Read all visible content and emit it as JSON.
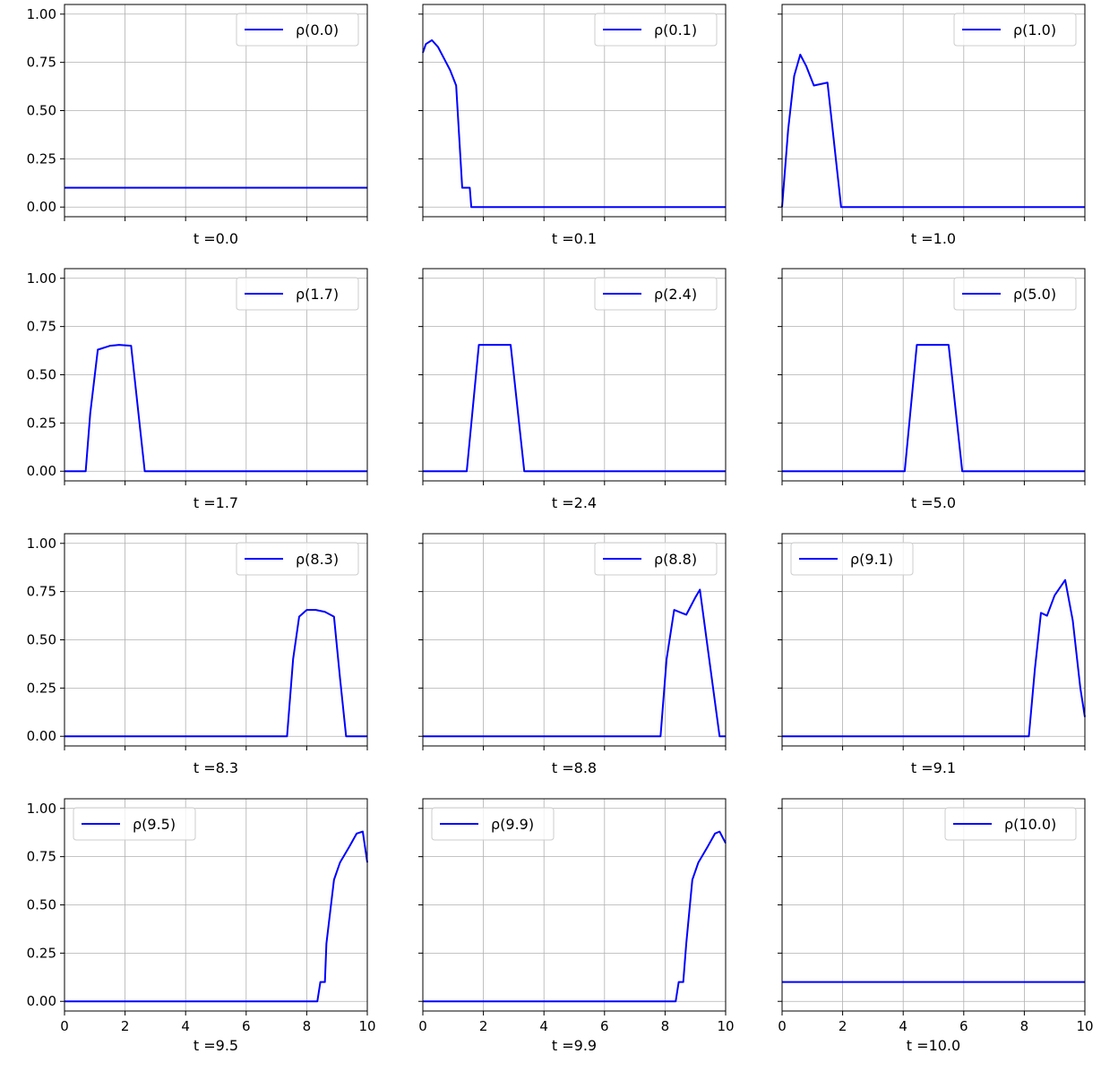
{
  "figure": {
    "layout": "4x3 grid",
    "shared_x": true,
    "shared_y": true
  },
  "colors": {
    "series": "#0000ff",
    "grid": "#b0b0b0",
    "axes": "#000000",
    "legend_border": "#cccccc"
  },
  "chart_data": [
    {
      "type": "line",
      "xlabel": "t =0.0",
      "legend": "ρ(0.0)",
      "legend_position": "upper-right",
      "xlim": [
        0,
        10
      ],
      "ylim": [
        -0.05,
        1.05
      ],
      "x": [
        0,
        10
      ],
      "y": [
        0.1,
        0.1
      ],
      "xticks": [
        0,
        2,
        4,
        6,
        8,
        10
      ],
      "yticks": [
        0.0,
        0.25,
        0.5,
        0.75,
        1.0
      ],
      "show_xticklabels": false,
      "show_yticklabels": true,
      "grid": true
    },
    {
      "type": "line",
      "xlabel": "t =0.1",
      "legend": "ρ(0.1)",
      "legend_position": "upper-right",
      "xlim": [
        0,
        10
      ],
      "ylim": [
        -0.05,
        1.05
      ],
      "x": [
        0,
        0.1,
        0.3,
        0.5,
        0.7,
        0.9,
        1.1,
        1.3,
        1.35,
        1.55,
        1.6,
        10
      ],
      "y": [
        0.8,
        0.845,
        0.865,
        0.83,
        0.77,
        0.71,
        0.63,
        0.1,
        0.1,
        0.1,
        0.0,
        0.0
      ],
      "xticks": [
        0,
        2,
        4,
        6,
        8,
        10
      ],
      "yticks": [
        0.0,
        0.25,
        0.5,
        0.75,
        1.0
      ],
      "show_xticklabels": false,
      "show_yticklabels": false,
      "grid": true
    },
    {
      "type": "line",
      "xlabel": "t =1.0",
      "legend": "ρ(1.0)",
      "legend_position": "upper-right",
      "xlim": [
        0,
        10
      ],
      "ylim": [
        -0.05,
        1.05
      ],
      "x": [
        0,
        0.2,
        0.4,
        0.6,
        0.8,
        1.05,
        1.5,
        1.95,
        10
      ],
      "y": [
        0.0,
        0.4,
        0.68,
        0.79,
        0.73,
        0.63,
        0.645,
        0.0,
        0.0
      ],
      "xticks": [
        0,
        2,
        4,
        6,
        8,
        10
      ],
      "yticks": [
        0.0,
        0.25,
        0.5,
        0.75,
        1.0
      ],
      "show_xticklabels": false,
      "show_yticklabels": false,
      "grid": true
    },
    {
      "type": "line",
      "xlabel": "t =1.7",
      "legend": "ρ(1.7)",
      "legend_position": "upper-right",
      "xlim": [
        0,
        10
      ],
      "ylim": [
        -0.05,
        1.05
      ],
      "x": [
        0,
        0.7,
        0.85,
        1.1,
        1.5,
        1.8,
        2.2,
        2.65,
        10
      ],
      "y": [
        0.0,
        0.0,
        0.3,
        0.63,
        0.65,
        0.655,
        0.65,
        0.0,
        0.0
      ],
      "xticks": [
        0,
        2,
        4,
        6,
        8,
        10
      ],
      "yticks": [
        0.0,
        0.25,
        0.5,
        0.75,
        1.0
      ],
      "show_xticklabels": false,
      "show_yticklabels": true,
      "grid": true
    },
    {
      "type": "line",
      "xlabel": "t =2.4",
      "legend": "ρ(2.4)",
      "legend_position": "upper-right",
      "xlim": [
        0,
        10
      ],
      "ylim": [
        -0.05,
        1.05
      ],
      "x": [
        0,
        1.45,
        1.85,
        2.9,
        3.35,
        10
      ],
      "y": [
        0.0,
        0.0,
        0.655,
        0.655,
        0.0,
        0.0
      ],
      "xticks": [
        0,
        2,
        4,
        6,
        8,
        10
      ],
      "yticks": [
        0.0,
        0.25,
        0.5,
        0.75,
        1.0
      ],
      "show_xticklabels": false,
      "show_yticklabels": false,
      "grid": true
    },
    {
      "type": "line",
      "xlabel": "t =5.0",
      "legend": "ρ(5.0)",
      "legend_position": "upper-right",
      "xlim": [
        0,
        10
      ],
      "ylim": [
        -0.05,
        1.05
      ],
      "x": [
        0,
        4.05,
        4.45,
        5.5,
        5.95,
        10
      ],
      "y": [
        0.0,
        0.0,
        0.655,
        0.655,
        0.0,
        0.0
      ],
      "xticks": [
        0,
        2,
        4,
        6,
        8,
        10
      ],
      "yticks": [
        0.0,
        0.25,
        0.5,
        0.75,
        1.0
      ],
      "show_xticklabels": false,
      "show_yticklabels": false,
      "grid": true
    },
    {
      "type": "line",
      "xlabel": "t =8.3",
      "legend": "ρ(8.3)",
      "legend_position": "upper-right",
      "xlim": [
        0,
        10
      ],
      "ylim": [
        -0.05,
        1.05
      ],
      "x": [
        0,
        7.35,
        7.55,
        7.75,
        8.0,
        8.3,
        8.6,
        8.9,
        9.1,
        9.3,
        10
      ],
      "y": [
        0.0,
        0.0,
        0.4,
        0.62,
        0.655,
        0.655,
        0.645,
        0.62,
        0.3,
        0.0,
        0.0
      ],
      "xticks": [
        0,
        2,
        4,
        6,
        8,
        10
      ],
      "yticks": [
        0.0,
        0.25,
        0.5,
        0.75,
        1.0
      ],
      "show_xticklabels": false,
      "show_yticklabels": true,
      "grid": true
    },
    {
      "type": "line",
      "xlabel": "t =8.8",
      "legend": "ρ(8.8)",
      "legend_position": "upper-right",
      "xlim": [
        0,
        10
      ],
      "ylim": [
        -0.05,
        1.05
      ],
      "x": [
        0,
        7.85,
        8.05,
        8.3,
        8.7,
        9.0,
        9.15,
        9.5,
        9.8,
        10
      ],
      "y": [
        0.0,
        0.0,
        0.4,
        0.655,
        0.63,
        0.72,
        0.76,
        0.35,
        0.0,
        0.0
      ],
      "xticks": [
        0,
        2,
        4,
        6,
        8,
        10
      ],
      "yticks": [
        0.0,
        0.25,
        0.5,
        0.75,
        1.0
      ],
      "show_xticklabels": false,
      "show_yticklabels": false,
      "grid": true
    },
    {
      "type": "line",
      "xlabel": "t =9.1",
      "legend": "ρ(9.1)",
      "legend_position": "upper-left",
      "xlim": [
        0,
        10
      ],
      "ylim": [
        -0.05,
        1.05
      ],
      "x": [
        0,
        8.15,
        8.35,
        8.55,
        8.75,
        9.0,
        9.35,
        9.6,
        9.85,
        10
      ],
      "y": [
        0.0,
        0.0,
        0.35,
        0.64,
        0.625,
        0.73,
        0.81,
        0.6,
        0.25,
        0.1
      ],
      "xticks": [
        0,
        2,
        4,
        6,
        8,
        10
      ],
      "yticks": [
        0.0,
        0.25,
        0.5,
        0.75,
        1.0
      ],
      "show_xticklabels": false,
      "show_yticklabels": false,
      "grid": true
    },
    {
      "type": "line",
      "xlabel": "t =9.5",
      "legend": "ρ(9.5)",
      "legend_position": "upper-left",
      "xlim": [
        0,
        10
      ],
      "ylim": [
        -0.05,
        1.05
      ],
      "x": [
        0,
        8.35,
        8.45,
        8.6,
        8.65,
        8.9,
        9.1,
        9.4,
        9.65,
        9.85,
        10
      ],
      "y": [
        0.0,
        0.0,
        0.1,
        0.1,
        0.3,
        0.63,
        0.72,
        0.8,
        0.87,
        0.88,
        0.72
      ],
      "xticks": [
        0,
        2,
        4,
        6,
        8,
        10
      ],
      "yticks": [
        0.0,
        0.25,
        0.5,
        0.75,
        1.0
      ],
      "show_xticklabels": true,
      "show_yticklabels": true,
      "grid": true
    },
    {
      "type": "line",
      "xlabel": "t =9.9",
      "legend": "ρ(9.9)",
      "legend_position": "upper-left",
      "xlim": [
        0,
        10
      ],
      "ylim": [
        -0.05,
        1.05
      ],
      "x": [
        0,
        8.35,
        8.45,
        8.6,
        8.7,
        8.9,
        9.1,
        9.4,
        9.65,
        9.8,
        10
      ],
      "y": [
        0.0,
        0.0,
        0.1,
        0.1,
        0.3,
        0.63,
        0.72,
        0.8,
        0.87,
        0.88,
        0.82
      ],
      "xticks": [
        0,
        2,
        4,
        6,
        8,
        10
      ],
      "yticks": [
        0.0,
        0.25,
        0.5,
        0.75,
        1.0
      ],
      "show_xticklabels": true,
      "show_yticklabels": false,
      "grid": true
    },
    {
      "type": "line",
      "xlabel": "t =10.0",
      "legend": "ρ(10.0)",
      "legend_position": "upper-right",
      "xlim": [
        0,
        10
      ],
      "ylim": [
        -0.05,
        1.05
      ],
      "x": [
        0,
        10
      ],
      "y": [
        0.1,
        0.1
      ],
      "xticks": [
        0,
        2,
        4,
        6,
        8,
        10
      ],
      "yticks": [
        0.0,
        0.25,
        0.5,
        0.75,
        1.0
      ],
      "show_xticklabels": true,
      "show_yticklabels": false,
      "grid": true
    }
  ]
}
